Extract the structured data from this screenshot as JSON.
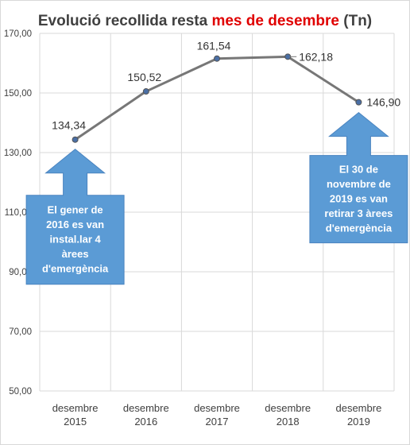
{
  "chart_data": {
    "type": "line",
    "title": {
      "part1": "Evolució recollida resta ",
      "part2": "mes de desembre",
      "part3": " (Tn)"
    },
    "categories": [
      [
        "desembre",
        "2015"
      ],
      [
        "desembre",
        "2016"
      ],
      [
        "desembre",
        "2017"
      ],
      [
        "desembre",
        "2018"
      ],
      [
        "desembre",
        "2019"
      ]
    ],
    "values": [
      134.34,
      150.52,
      161.54,
      162.18,
      146.9
    ],
    "value_labels": [
      "134,34",
      "150,52",
      "161,54",
      "162,18",
      "146,90"
    ],
    "y_ticks": [
      "50,00",
      "70,00",
      "90,00",
      "110,00",
      "130,00",
      "150,00",
      "170,00"
    ],
    "ylim": [
      50,
      170
    ],
    "grid": true,
    "annotations": [
      {
        "points_to": 0,
        "lines": [
          "El gener de",
          "2016  es van",
          "instal.lar 4",
          "àrees",
          "d'emergència"
        ]
      },
      {
        "points_to": 4,
        "lines": [
          "El 30 de",
          "novembre de",
          "2019  es van",
          "retirar 3 àrees",
          "d'emergència"
        ]
      }
    ],
    "colors": {
      "line": "#777777",
      "marker": "#4a6fa5",
      "title_highlight": "#e00000",
      "arrow": "#5b9bd5",
      "arrow_border": "#4a84c0",
      "grid": "#d9d9d9"
    }
  }
}
